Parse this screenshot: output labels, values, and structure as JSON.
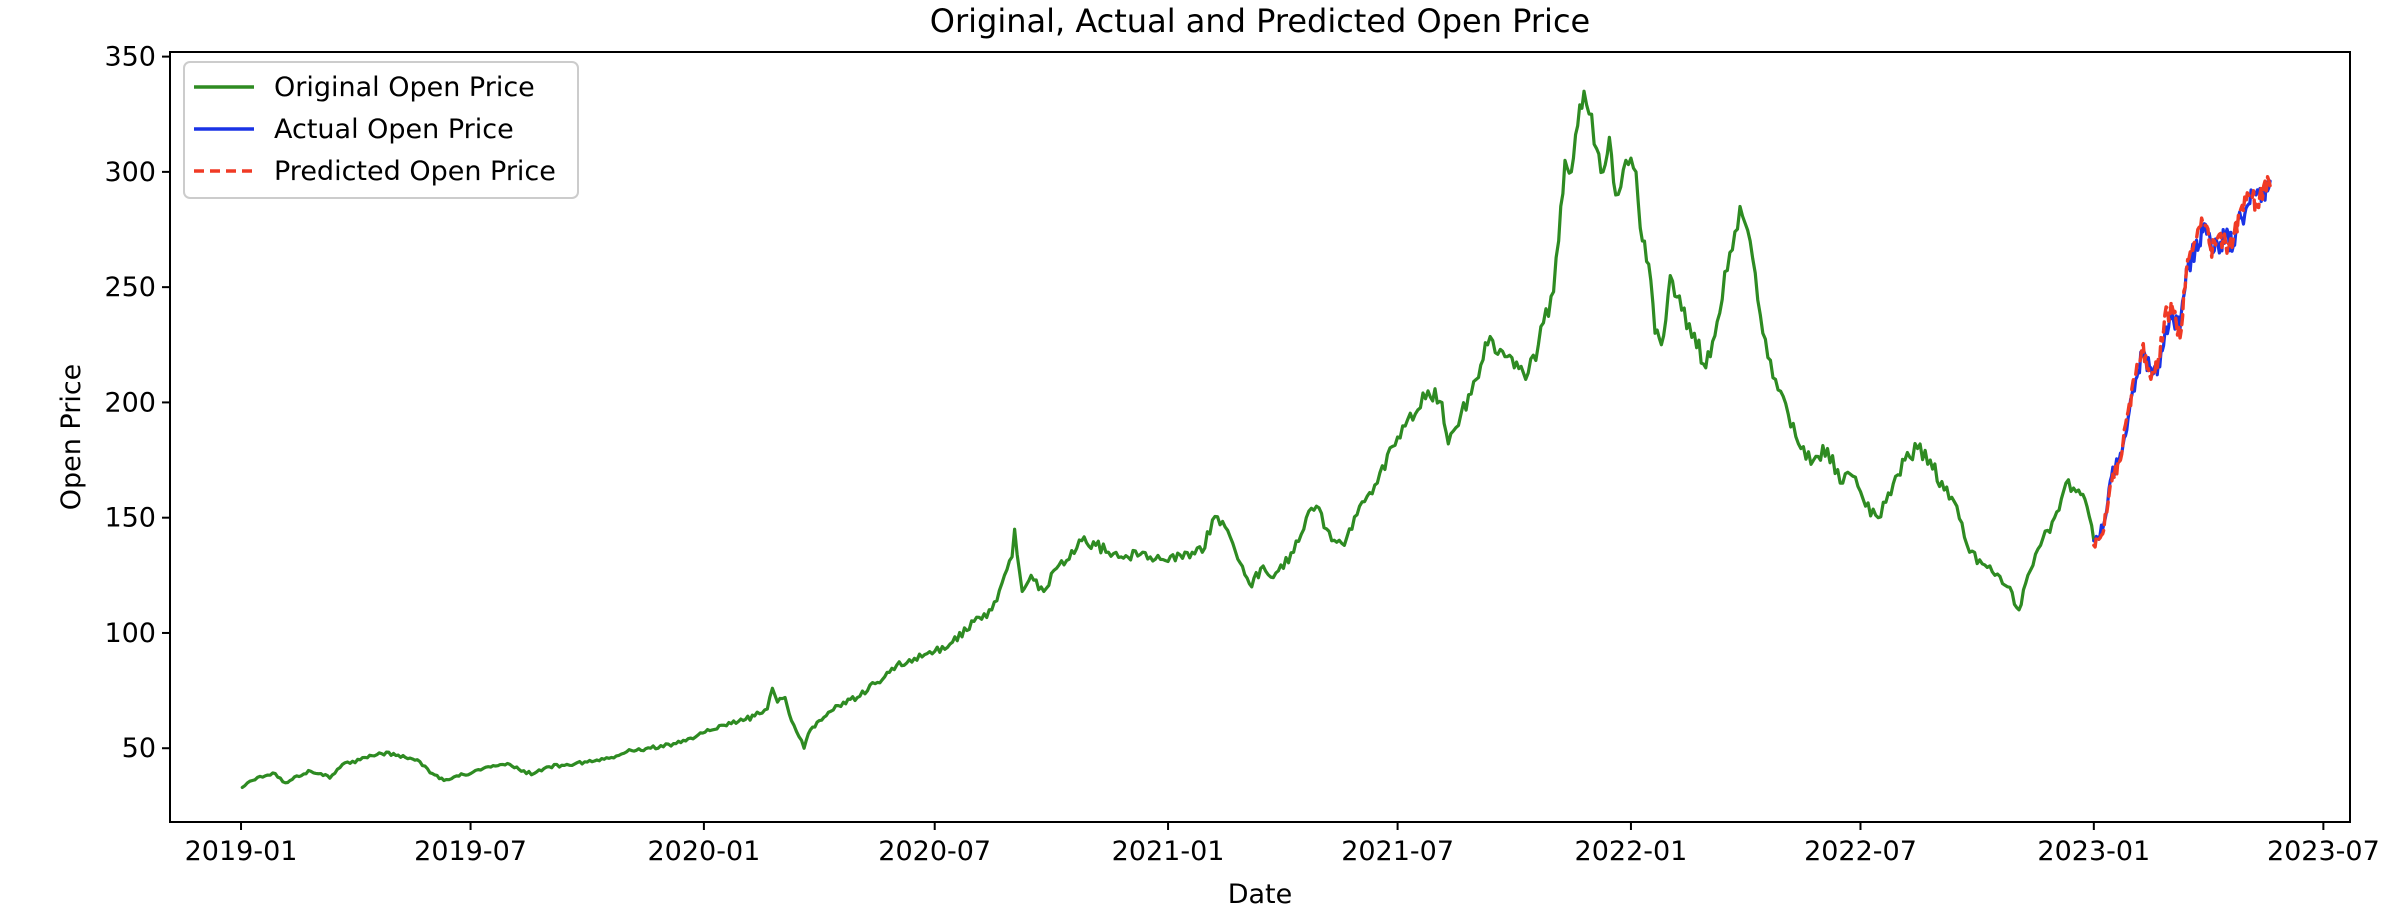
{
  "chart_data": {
    "type": "line",
    "title": "Original, Actual and Predicted Open Price",
    "xlabel": "Date",
    "ylabel": "Open Price",
    "xlim": [
      "2018-11-06",
      "2023-07-22"
    ],
    "ylim": [
      18,
      352
    ],
    "x_ticks": [
      "2019-01",
      "2019-07",
      "2020-01",
      "2020-07",
      "2021-01",
      "2021-07",
      "2022-01",
      "2022-07",
      "2023-01",
      "2023-07"
    ],
    "y_ticks": [
      50,
      100,
      150,
      200,
      250,
      300,
      350
    ],
    "grid": false,
    "legend_position": "top-left",
    "series": [
      {
        "name": "Original Open Price",
        "color": "#2e8b22",
        "style": "solid",
        "points": [
          [
            "2019-01-02",
            33
          ],
          [
            "2019-01-10",
            36
          ],
          [
            "2019-01-20",
            38
          ],
          [
            "2019-01-28",
            39
          ],
          [
            "2019-02-05",
            35
          ],
          [
            "2019-02-14",
            38
          ],
          [
            "2019-02-25",
            40
          ],
          [
            "2019-03-05",
            39
          ],
          [
            "2019-03-12",
            37
          ],
          [
            "2019-03-22",
            43
          ],
          [
            "2019-04-05",
            45
          ],
          [
            "2019-04-20",
            48
          ],
          [
            "2019-05-05",
            47
          ],
          [
            "2019-05-20",
            45
          ],
          [
            "2019-06-01",
            39
          ],
          [
            "2019-06-10",
            36
          ],
          [
            "2019-06-20",
            38
          ],
          [
            "2019-07-01",
            39
          ],
          [
            "2019-07-15",
            42
          ],
          [
            "2019-08-01",
            43
          ],
          [
            "2019-08-10",
            40
          ],
          [
            "2019-08-20",
            39
          ],
          [
            "2019-09-01",
            42
          ],
          [
            "2019-09-15",
            43
          ],
          [
            "2019-10-01",
            44
          ],
          [
            "2019-10-20",
            46
          ],
          [
            "2019-11-05",
            49
          ],
          [
            "2019-11-20",
            50
          ],
          [
            "2019-12-10",
            52
          ],
          [
            "2020-01-02",
            57
          ],
          [
            "2020-01-15",
            60
          ],
          [
            "2020-02-01",
            62
          ],
          [
            "2020-02-10",
            64
          ],
          [
            "2020-02-20",
            67
          ],
          [
            "2020-02-24",
            76
          ],
          [
            "2020-02-28",
            70
          ],
          [
            "2020-03-05",
            72
          ],
          [
            "2020-03-10",
            62
          ],
          [
            "2020-03-16",
            55
          ],
          [
            "2020-03-20",
            50
          ],
          [
            "2020-03-25",
            58
          ],
          [
            "2020-04-01",
            62
          ],
          [
            "2020-04-10",
            66
          ],
          [
            "2020-04-20",
            70
          ],
          [
            "2020-05-01",
            72
          ],
          [
            "2020-05-15",
            78
          ],
          [
            "2020-06-01",
            86
          ],
          [
            "2020-06-15",
            89
          ],
          [
            "2020-07-01",
            92
          ],
          [
            "2020-07-15",
            96
          ],
          [
            "2020-08-01",
            105
          ],
          [
            "2020-08-15",
            110
          ],
          [
            "2020-08-25",
            125
          ],
          [
            "2020-08-31",
            133
          ],
          [
            "2020-09-02",
            145
          ],
          [
            "2020-09-08",
            118
          ],
          [
            "2020-09-15",
            125
          ],
          [
            "2020-09-25",
            118
          ],
          [
            "2020-10-05",
            128
          ],
          [
            "2020-10-15",
            132
          ],
          [
            "2020-10-25",
            140
          ],
          [
            "2020-11-05",
            138
          ],
          [
            "2020-11-15",
            135
          ],
          [
            "2020-11-25",
            133
          ],
          [
            "2020-12-10",
            134
          ],
          [
            "2021-01-01",
            131
          ],
          [
            "2021-01-20",
            135
          ],
          [
            "2021-01-28",
            135
          ],
          [
            "2021-02-05",
            149
          ],
          [
            "2021-02-15",
            146
          ],
          [
            "2021-02-25",
            132
          ],
          [
            "2021-03-08",
            120
          ],
          [
            "2021-03-15",
            128
          ],
          [
            "2021-03-25",
            124
          ],
          [
            "2021-04-10",
            135
          ],
          [
            "2021-04-20",
            150
          ],
          [
            "2021-04-28",
            155
          ],
          [
            "2021-05-10",
            140
          ],
          [
            "2021-05-20",
            138
          ],
          [
            "2021-06-01",
            155
          ],
          [
            "2021-06-15",
            165
          ],
          [
            "2021-07-01",
            185
          ],
          [
            "2021-07-15",
            195
          ],
          [
            "2021-07-25",
            205
          ],
          [
            "2021-08-05",
            200
          ],
          [
            "2021-08-10",
            182
          ],
          [
            "2021-08-20",
            195
          ],
          [
            "2021-09-01",
            210
          ],
          [
            "2021-09-10",
            225
          ],
          [
            "2021-09-20",
            223
          ],
          [
            "2021-10-01",
            215
          ],
          [
            "2021-10-10",
            210
          ],
          [
            "2021-10-20",
            225
          ],
          [
            "2021-11-01",
            248
          ],
          [
            "2021-11-05",
            270
          ],
          [
            "2021-11-10",
            305
          ],
          [
            "2021-11-15",
            300
          ],
          [
            "2021-11-20",
            320
          ],
          [
            "2021-11-25",
            335
          ],
          [
            "2021-12-01",
            325
          ],
          [
            "2021-12-05",
            310
          ],
          [
            "2021-12-10",
            300
          ],
          [
            "2021-12-15",
            315
          ],
          [
            "2021-12-20",
            290
          ],
          [
            "2021-12-28",
            305
          ],
          [
            "2022-01-05",
            300
          ],
          [
            "2022-01-10",
            270
          ],
          [
            "2022-01-15",
            260
          ],
          [
            "2022-01-20",
            230
          ],
          [
            "2022-01-25",
            225
          ],
          [
            "2022-02-01",
            255
          ],
          [
            "2022-02-10",
            240
          ],
          [
            "2022-02-20",
            230
          ],
          [
            "2022-03-01",
            215
          ],
          [
            "2022-03-10",
            235
          ],
          [
            "2022-03-20",
            265
          ],
          [
            "2022-03-28",
            285
          ],
          [
            "2022-04-05",
            270
          ],
          [
            "2022-04-15",
            230
          ],
          [
            "2022-04-25",
            210
          ],
          [
            "2022-05-05",
            195
          ],
          [
            "2022-05-15",
            180
          ],
          [
            "2022-05-25",
            175
          ],
          [
            "2022-06-05",
            180
          ],
          [
            "2022-06-15",
            165
          ],
          [
            "2022-06-25",
            168
          ],
          [
            "2022-07-05",
            155
          ],
          [
            "2022-07-15",
            150
          ],
          [
            "2022-07-25",
            160
          ],
          [
            "2022-08-05",
            175
          ],
          [
            "2022-08-15",
            180
          ],
          [
            "2022-08-25",
            175
          ],
          [
            "2022-09-05",
            162
          ],
          [
            "2022-09-15",
            155
          ],
          [
            "2022-09-25",
            135
          ],
          [
            "2022-10-05",
            130
          ],
          [
            "2022-10-15",
            125
          ],
          [
            "2022-10-25",
            120
          ],
          [
            "2022-11-03",
            110
          ],
          [
            "2022-11-10",
            125
          ],
          [
            "2022-11-20",
            138
          ],
          [
            "2022-12-01",
            150
          ],
          [
            "2022-12-10",
            165
          ],
          [
            "2022-12-20",
            162
          ],
          [
            "2022-12-25",
            158
          ],
          [
            "2023-01-01",
            140
          ]
        ]
      },
      {
        "name": "Actual Open Price",
        "color": "#1a33e6",
        "style": "solid",
        "points": [
          [
            "2023-01-01",
            140
          ],
          [
            "2023-01-08",
            145
          ],
          [
            "2023-01-15",
            168
          ],
          [
            "2023-01-22",
            178
          ],
          [
            "2023-01-28",
            193
          ],
          [
            "2023-02-03",
            210
          ],
          [
            "2023-02-08",
            220
          ],
          [
            "2023-02-14",
            215
          ],
          [
            "2023-02-20",
            212
          ],
          [
            "2023-02-26",
            230
          ],
          [
            "2023-03-04",
            238
          ],
          [
            "2023-03-10",
            232
          ],
          [
            "2023-03-16",
            258
          ],
          [
            "2023-03-22",
            267
          ],
          [
            "2023-03-28",
            274
          ],
          [
            "2023-04-03",
            270
          ],
          [
            "2023-04-09",
            268
          ],
          [
            "2023-04-15",
            273
          ],
          [
            "2023-04-21",
            268
          ],
          [
            "2023-04-27",
            280
          ],
          [
            "2023-05-03",
            286
          ],
          [
            "2023-05-09",
            290
          ],
          [
            "2023-05-15",
            292
          ],
          [
            "2023-05-20",
            296
          ]
        ]
      },
      {
        "name": "Predicted Open Price",
        "color": "#f03a25",
        "style": "dashed",
        "points": [
          [
            "2023-01-01",
            138
          ],
          [
            "2023-01-08",
            143
          ],
          [
            "2023-01-15",
            165
          ],
          [
            "2023-01-22",
            175
          ],
          [
            "2023-01-28",
            196
          ],
          [
            "2023-02-03",
            212
          ],
          [
            "2023-02-08",
            224
          ],
          [
            "2023-02-14",
            212
          ],
          [
            "2023-02-20",
            215
          ],
          [
            "2023-02-26",
            238
          ],
          [
            "2023-03-04",
            241
          ],
          [
            "2023-03-10",
            228
          ],
          [
            "2023-03-16",
            262
          ],
          [
            "2023-03-22",
            270
          ],
          [
            "2023-03-28",
            278
          ],
          [
            "2023-04-03",
            267
          ],
          [
            "2023-04-09",
            272
          ],
          [
            "2023-04-15",
            269
          ],
          [
            "2023-04-21",
            271
          ],
          [
            "2023-04-27",
            284
          ],
          [
            "2023-05-03",
            290
          ],
          [
            "2023-05-09",
            286
          ],
          [
            "2023-05-15",
            294
          ],
          [
            "2023-05-20",
            294
          ]
        ]
      }
    ]
  }
}
